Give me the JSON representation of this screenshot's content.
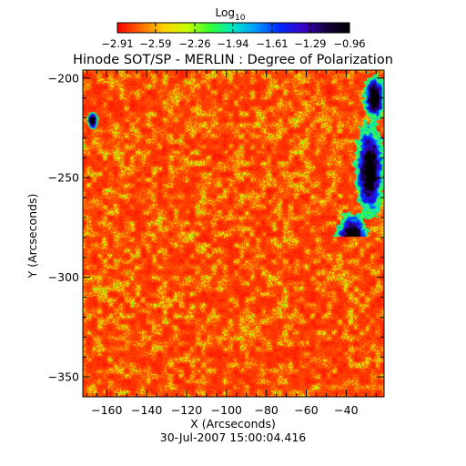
{
  "chart_data": {
    "type": "heatmap",
    "title": "Hinode SOT/SP - MERLIN : Degree of Polarization",
    "xlabel": "X (Arcseconds)",
    "ylabel": "Y (Arcseconds)",
    "xlim": [
      -172,
      -21
    ],
    "ylim": [
      -360,
      -196
    ],
    "x_ticks": [
      -160,
      -140,
      -120,
      -100,
      -80,
      -60,
      -40
    ],
    "x_tick_labels": [
      "−160",
      "−140",
      "−120",
      "−100",
      "−80",
      "−60",
      "−40"
    ],
    "y_ticks": [
      -200,
      -250,
      -300,
      -350
    ],
    "y_tick_labels": [
      "−200",
      "−250",
      "−300",
      "−350"
    ],
    "colorbar": {
      "title_main": "Log",
      "title_sub": "10",
      "range": [
        -2.91,
        -0.96
      ],
      "ticks": [
        -2.91,
        -2.59,
        -2.26,
        -1.94,
        -1.61,
        -1.29,
        -0.96
      ],
      "tick_labels": [
        "−2.91",
        "−2.59",
        "−2.26",
        "−1.94",
        "−1.61",
        "−1.29",
        "−0.96"
      ],
      "colors": [
        "#ff0000",
        "#ff6a00",
        "#ffd200",
        "#c8ff00",
        "#32ff32",
        "#00e6c8",
        "#0096ff",
        "#0028ff",
        "#3c00c8",
        "#14003c",
        "#000000"
      ]
    },
    "timestamp": "30-Jul-2007 15:00:04.416"
  }
}
